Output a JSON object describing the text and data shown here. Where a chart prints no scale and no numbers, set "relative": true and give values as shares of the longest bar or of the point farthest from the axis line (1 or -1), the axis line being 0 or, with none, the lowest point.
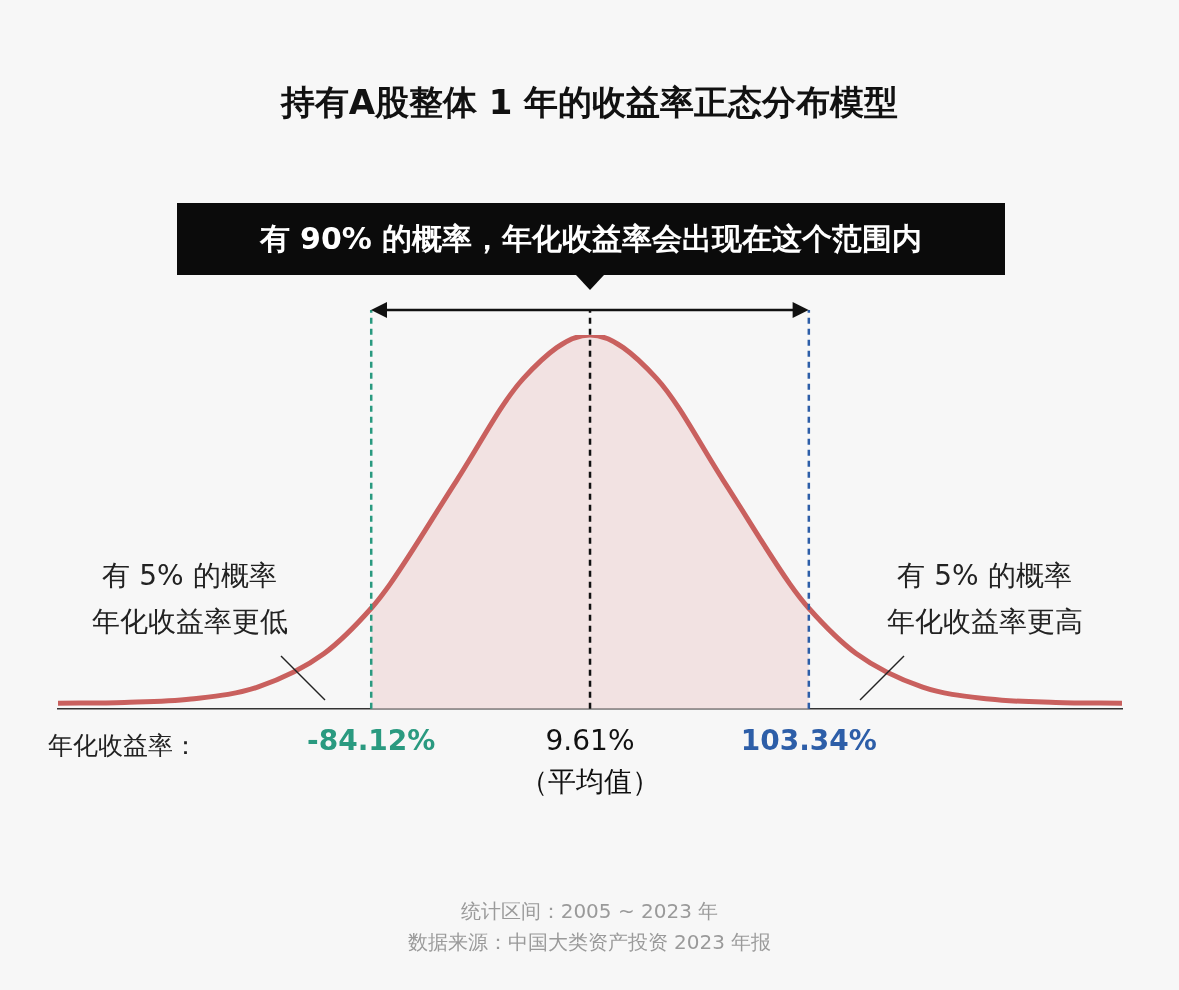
{
  "chart_data": {
    "type": "line",
    "title": "持有A股整体 1 年的收益率正态分布模型",
    "xlabel": "年化收益率：",
    "relative": true,
    "tick_labels": "x",
    "xlim": [
      -218.3,
      237.5
    ],
    "xticks": [
      {
        "value": -84.12,
        "label": "-84.12%"
      },
      {
        "value": 9.61,
        "label": "9.61%\n（平均值）"
      },
      {
        "value": 103.34,
        "label": "103.34%"
      }
    ],
    "series": [
      {
        "type": "line",
        "color": "#c9605e",
        "x": [
          -218.3,
          -189.8,
          -161.3,
          -132.8,
          -104.3,
          -84.12,
          -75.9,
          -47.4,
          -18.9,
          9.61,
          38.1,
          66.6,
          95.1,
          103.34,
          123.6,
          152.1,
          180.6,
          209.1,
          237.5
        ],
        "values": [
          0.015,
          0.017,
          0.026,
          0.058,
          0.148,
          0.269,
          0.335,
          0.612,
          0.884,
          1,
          0.884,
          0.612,
          0.335,
          0.269,
          0.148,
          0.058,
          0.026,
          0.017,
          0.015
        ]
      },
      {
        "type": "area",
        "color": "#f2e2e2",
        "x": [
          -84.12,
          -75.9,
          -47.4,
          -18.9,
          9.61,
          38.1,
          66.6,
          95.1,
          103.34
        ],
        "values": [
          0.269,
          0.335,
          0.612,
          0.884,
          1,
          0.884,
          0.612,
          0.335,
          0.269
        ]
      }
    ],
    "ref_lines": [
      {
        "axis": "x",
        "value": -84.12,
        "color": "#2a9a80",
        "line_style": "dashed"
      },
      {
        "axis": "x",
        "value": 9.61,
        "color": "#111111",
        "line_style": "dashed"
      },
      {
        "axis": "x",
        "value": 103.34,
        "color": "#2d5ea8",
        "line_style": "dashed"
      }
    ],
    "annotations": [
      "有 90% 的概率，年化收益率会出现在这个范围内",
      "有 5% 的概率年化收益率更低",
      "有 5% 的概率年化收益率更高",
      "统计区间：2005 ~ 2023 年",
      "数据来源：中国大类资产投资 2023 年报"
    ]
  }
}
